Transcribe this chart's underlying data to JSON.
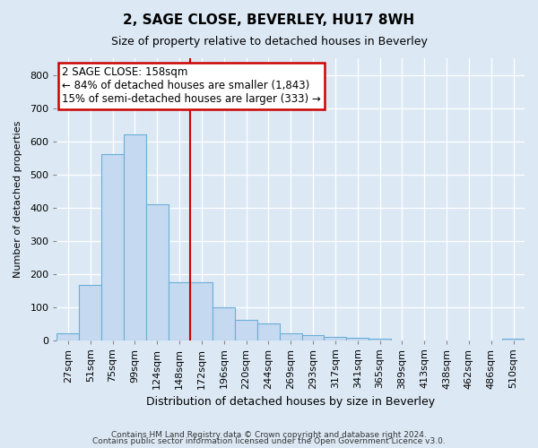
{
  "title": "2, SAGE CLOSE, BEVERLEY, HU17 8WH",
  "subtitle": "Size of property relative to detached houses in Beverley",
  "xlabel": "Distribution of detached houses by size in Beverley",
  "ylabel": "Number of detached properties",
  "footnote1": "Contains HM Land Registry data © Crown copyright and database right 2024.",
  "footnote2": "Contains public sector information licensed under the Open Government Licence v3.0.",
  "bar_labels": [
    "27sqm",
    "51sqm",
    "75sqm",
    "99sqm",
    "124sqm",
    "148sqm",
    "172sqm",
    "196sqm",
    "220sqm",
    "244sqm",
    "269sqm",
    "293sqm",
    "317sqm",
    "341sqm",
    "365sqm",
    "389sqm",
    "413sqm",
    "438sqm",
    "462sqm",
    "486sqm",
    "510sqm"
  ],
  "bar_values": [
    20,
    165,
    560,
    620,
    410,
    175,
    175,
    100,
    60,
    50,
    20,
    15,
    10,
    8,
    5,
    0,
    0,
    0,
    0,
    0,
    5
  ],
  "bar_color": "#c5d9f0",
  "bar_edge_color": "#6baed6",
  "property_line_x": 5.5,
  "property_line_color": "#cc0000",
  "ylim": [
    0,
    850
  ],
  "yticks": [
    0,
    100,
    200,
    300,
    400,
    500,
    600,
    700,
    800
  ],
  "annotation_line1": "2 SAGE CLOSE: 158sqm",
  "annotation_line2": "← 84% of detached houses are smaller (1,843)",
  "annotation_line3": "15% of semi-detached houses are larger (333) →",
  "annotation_box_color": "#ffffff",
  "annotation_box_edge": "#cc0000",
  "background_color": "#dce9f5",
  "grid_color": "#ffffff",
  "title_fontsize": 11,
  "subtitle_fontsize": 9,
  "xlabel_fontsize": 9,
  "ylabel_fontsize": 8,
  "tick_fontsize": 8
}
